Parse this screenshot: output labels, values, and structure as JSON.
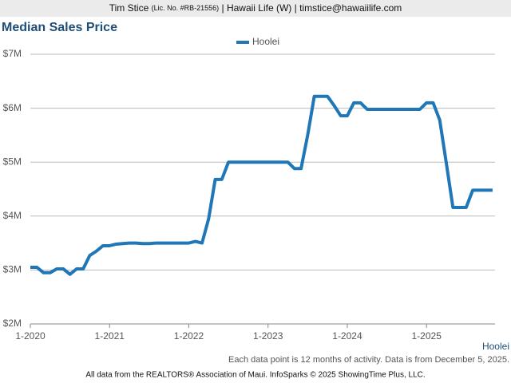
{
  "header": {
    "name": "Tim Stice",
    "license": "(Lic. No. #RB-21556)",
    "rest": "| Hawaii Life (W) | timstice@hawaiilife.com"
  },
  "chart_data": {
    "type": "line",
    "title": "Median Sales Price",
    "categories": [
      "1-2020",
      null,
      null,
      null,
      null,
      null,
      null,
      null,
      null,
      null,
      null,
      null,
      "1-2021",
      null,
      null,
      null,
      null,
      null,
      null,
      null,
      null,
      null,
      null,
      null,
      "1-2022",
      null,
      null,
      null,
      null,
      null,
      null,
      null,
      null,
      null,
      null,
      null,
      "1-2023",
      null,
      null,
      null,
      null,
      null,
      null,
      null,
      null,
      null,
      null,
      null,
      "1-2024",
      null,
      null,
      null,
      null,
      null,
      null,
      null,
      null,
      null,
      null,
      null,
      "1-2025",
      null,
      null,
      null,
      null,
      null,
      null,
      null,
      null,
      null,
      null
    ],
    "series": [
      {
        "name": "Hoolei",
        "color": "#1f77b8",
        "values": [
          3.05,
          3.05,
          2.95,
          2.95,
          3.02,
          3.02,
          2.92,
          3.02,
          3.02,
          3.27,
          3.35,
          3.45,
          3.45,
          3.48,
          3.49,
          3.5,
          3.5,
          3.49,
          3.49,
          3.5,
          3.5,
          3.5,
          3.5,
          3.5,
          3.5,
          3.53,
          3.5,
          3.95,
          4.68,
          4.68,
          5.0,
          5.0,
          5.0,
          5.0,
          5.0,
          5.0,
          5.0,
          5.0,
          5.0,
          5.0,
          4.88,
          4.88,
          5.5,
          6.22,
          6.22,
          6.22,
          6.05,
          5.86,
          5.86,
          6.1,
          6.1,
          5.98,
          5.98,
          5.98,
          5.98,
          5.98,
          5.98,
          5.98,
          5.98,
          5.98,
          6.1,
          6.1,
          5.78,
          4.98,
          4.16,
          4.16,
          4.16,
          4.48,
          4.48,
          4.48,
          4.48
        ]
      }
    ],
    "ylim": [
      2,
      7
    ],
    "yticks": [
      {
        "value": 2,
        "label": "$2M"
      },
      {
        "value": 3,
        "label": "$3M"
      },
      {
        "value": 4,
        "label": "$4M"
      },
      {
        "value": 5,
        "label": "$5M"
      },
      {
        "value": 6,
        "label": "$6M"
      },
      {
        "value": 7,
        "label": "$7M"
      }
    ],
    "grid": true,
    "legend": "top",
    "note": "Each data point is 12 months of activity. Data is from December 5, 2025.",
    "footer": "All data from the REALTORS® Association of Maui. InfoSparks © 2025 ShowingTime Plus, LLC."
  }
}
